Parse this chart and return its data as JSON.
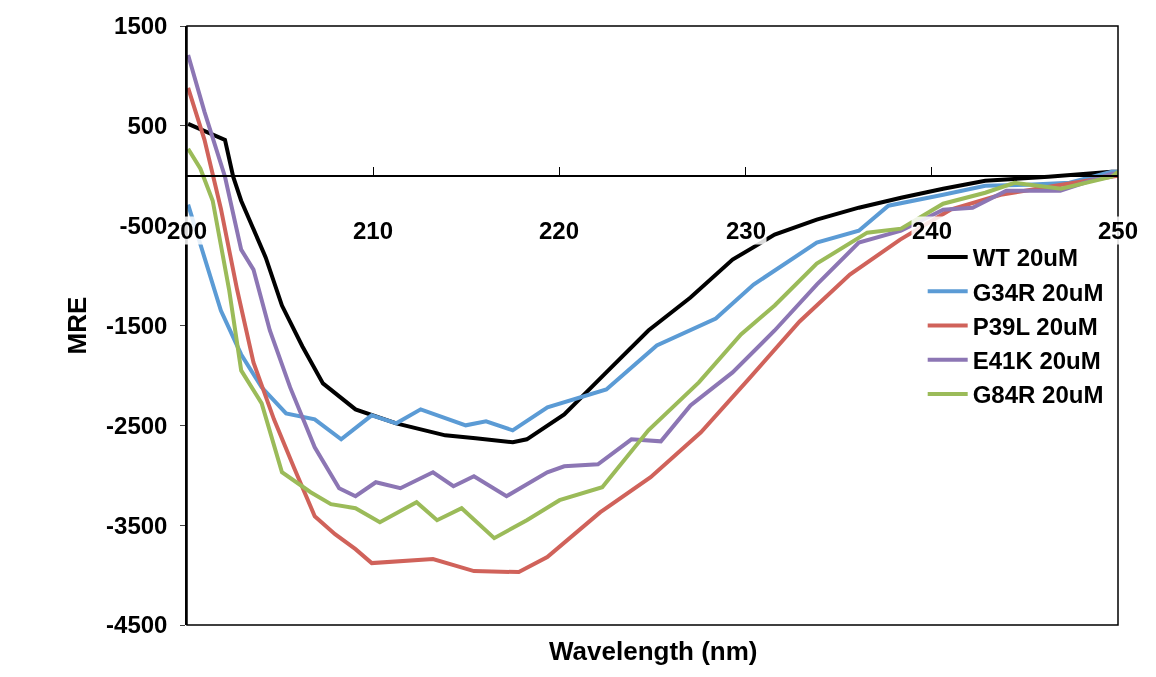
{
  "chart_data": {
    "type": "line",
    "xlabel": "Wavelength (nm)",
    "ylabel": "MRE",
    "xlim": [
      200,
      250
    ],
    "xticks": [
      200,
      210,
      220,
      230,
      240,
      250
    ],
    "ylim": [
      -4500,
      1500
    ],
    "yticks": [
      1500,
      500,
      -500,
      -1500,
      -2500,
      -3500,
      -4500
    ],
    "legend": "right",
    "marker": "none",
    "line_style": "solid",
    "series": [
      {
        "name": "WT 20uM",
        "color": "#000000",
        "x": [
          200.06,
          202.04,
          202.48,
          202.91,
          204.23,
          205.1,
          206.2,
          207.3,
          209.05,
          211.24,
          213.87,
          215.5,
          217.5,
          218.25,
          220.26,
          222.52,
          224.78,
          227.04,
          229.3,
          231.56,
          233.82,
          236.08,
          238.35,
          240.61,
          242.87,
          246.26,
          249.66,
          250
        ],
        "values": [
          520,
          360,
          -10,
          -250,
          -820,
          -1300,
          -1710,
          -2080,
          -2340,
          -2480,
          -2600,
          -2630,
          -2670,
          -2640,
          -2390,
          -1970,
          -1550,
          -1220,
          -840,
          -590,
          -440,
          -320,
          -220,
          -130,
          -50,
          -10,
          40,
          40
        ]
      },
      {
        "name": "G34R 20uM",
        "color": "#5b9bd5",
        "x": [
          200.06,
          200.94,
          201.82,
          202.91,
          204.01,
          205.32,
          206.86,
          208.28,
          209.92,
          211.24,
          212.55,
          214.97,
          216.06,
          217.49,
          219.36,
          222.52,
          225.23,
          228.4,
          230.43,
          233.82,
          236.08,
          237.67,
          240.61,
          242.87,
          245.13,
          247.4,
          249.66,
          250
        ],
        "values": [
          -290,
          -820,
          -1350,
          -1790,
          -2120,
          -2380,
          -2440,
          -2640,
          -2400,
          -2480,
          -2340,
          -2500,
          -2460,
          -2550,
          -2320,
          -2140,
          -1700,
          -1430,
          -1090,
          -670,
          -550,
          -300,
          -190,
          -100,
          -90,
          -70,
          40,
          40
        ]
      },
      {
        "name": "P39L 20uM",
        "color": "#d0625a",
        "x": [
          200.06,
          200.94,
          201.82,
          202.69,
          203.57,
          204.67,
          205.76,
          206.86,
          207.95,
          209.05,
          209.92,
          213.21,
          215.41,
          217.82,
          219.35,
          222.2,
          224.9,
          227.6,
          230.2,
          232.9,
          235.6,
          238.3,
          241,
          243.7,
          246.3,
          250
        ],
        "values": [
          880,
          360,
          -330,
          -1140,
          -1870,
          -2440,
          -2930,
          -3410,
          -3590,
          -3740,
          -3880,
          -3840,
          -3960,
          -3970,
          -3820,
          -3370,
          -3020,
          -2570,
          -2030,
          -1460,
          -990,
          -640,
          -340,
          -190,
          -110,
          0
        ]
      },
      {
        "name": "E41K 20uM",
        "color": "#8c76b4",
        "x": [
          200.06,
          200.94,
          202.04,
          202.91,
          203.57,
          204.45,
          205.54,
          206.86,
          208.17,
          209.05,
          210.14,
          211.46,
          213.21,
          214.31,
          215.41,
          217.16,
          219.35,
          220.26,
          222.07,
          223.87,
          225.45,
          227.04,
          229.3,
          231.56,
          233.82,
          236.08,
          238.35,
          240.61,
          242.19,
          244.0,
          246.9,
          249.66,
          250
        ],
        "values": [
          1210,
          640,
          -10,
          -740,
          -940,
          -1550,
          -2120,
          -2720,
          -3130,
          -3210,
          -3070,
          -3130,
          -2970,
          -3110,
          -3010,
          -3210,
          -2970,
          -2910,
          -2890,
          -2640,
          -2660,
          -2300,
          -1970,
          -1550,
          -1090,
          -670,
          -550,
          -340,
          -320,
          -150,
          -150,
          20,
          20
        ]
      },
      {
        "name": "G84R 20uM",
        "color": "#9bbb59",
        "x": [
          200.06,
          200.72,
          201.38,
          202.26,
          202.91,
          204.01,
          205.1,
          206.64,
          207.73,
          209.05,
          210.36,
          212.33,
          213.43,
          214.75,
          216.5,
          218.25,
          220.01,
          222.3,
          224.78,
          227.49,
          229.75,
          231.56,
          233.82,
          236.53,
          238.35,
          240.61,
          242.87,
          244.45,
          246.94,
          249.66,
          250
        ],
        "values": [
          270,
          70,
          -250,
          -1140,
          -1950,
          -2280,
          -2970,
          -3170,
          -3290,
          -3330,
          -3470,
          -3270,
          -3450,
          -3330,
          -3630,
          -3450,
          -3250,
          -3120,
          -2550,
          -2070,
          -1590,
          -1300,
          -880,
          -570,
          -530,
          -280,
          -170,
          -70,
          -130,
          -10,
          40
        ]
      }
    ]
  }
}
